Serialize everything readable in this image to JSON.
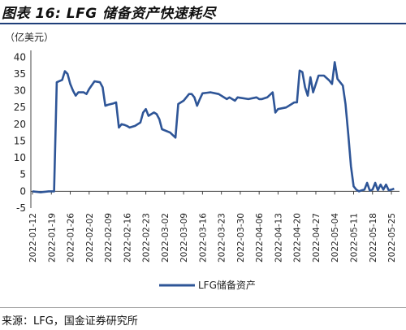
{
  "figure": {
    "title": "图表 16: LFG 储备资产快速耗尽",
    "source": "来源：LFG，国金证券研究所"
  },
  "chart_data": {
    "type": "line",
    "unit_label": "（亿美元）",
    "yticks": [
      -5,
      0,
      5,
      10,
      15,
      20,
      25,
      30,
      35,
      40
    ],
    "ylim": [
      -5,
      42
    ],
    "xlim": [
      "2022-01-12",
      "2022-05-28"
    ],
    "xticks": [
      "2022-01-12",
      "2022-01-19",
      "2022-01-26",
      "2022-02-02",
      "2022-02-09",
      "2022-02-16",
      "2022-02-23",
      "2022-03-02",
      "2022-03-09",
      "2022-03-16",
      "2022-03-23",
      "2022-03-30",
      "2022-04-06",
      "2022-04-13",
      "2022-04-20",
      "2022-04-27",
      "2022-05-04",
      "2022-05-11",
      "2022-05-18",
      "2022-05-25"
    ],
    "series": [
      {
        "name": "LFG储备资产",
        "color": "#2e5597",
        "points": [
          [
            "2022-01-12",
            0
          ],
          [
            "2022-01-15",
            -0.3
          ],
          [
            "2022-01-18",
            0
          ],
          [
            "2022-01-20",
            0
          ],
          [
            "2022-01-21",
            32.5
          ],
          [
            "2022-01-23",
            33.2
          ],
          [
            "2022-01-24",
            35.8
          ],
          [
            "2022-01-25",
            35.0
          ],
          [
            "2022-01-26",
            32.0
          ],
          [
            "2022-01-27",
            30.0
          ],
          [
            "2022-01-28",
            28.5
          ],
          [
            "2022-01-29",
            29.5
          ],
          [
            "2022-01-31",
            29.5
          ],
          [
            "2022-02-01",
            29.0
          ],
          [
            "2022-02-02",
            30.5
          ],
          [
            "2022-02-04",
            32.8
          ],
          [
            "2022-02-06",
            32.5
          ],
          [
            "2022-02-07",
            31.0
          ],
          [
            "2022-02-08",
            25.5
          ],
          [
            "2022-02-09",
            25.8
          ],
          [
            "2022-02-11",
            26.2
          ],
          [
            "2022-02-12",
            26.5
          ],
          [
            "2022-02-13",
            19.0
          ],
          [
            "2022-02-14",
            20.0
          ],
          [
            "2022-02-15",
            19.8
          ],
          [
            "2022-02-16",
            19.5
          ],
          [
            "2022-02-17",
            19.0
          ],
          [
            "2022-02-19",
            19.5
          ],
          [
            "2022-02-21",
            20.5
          ],
          [
            "2022-02-22",
            23.5
          ],
          [
            "2022-02-23",
            24.5
          ],
          [
            "2022-02-24",
            22.5
          ],
          [
            "2022-02-26",
            23.5
          ],
          [
            "2022-02-27",
            23.0
          ],
          [
            "2022-02-28",
            21.5
          ],
          [
            "2022-03-01",
            18.5
          ],
          [
            "2022-03-04",
            17.5
          ],
          [
            "2022-03-06",
            16.0
          ],
          [
            "2022-03-07",
            26.0
          ],
          [
            "2022-03-09",
            27.0
          ],
          [
            "2022-03-11",
            29.0
          ],
          [
            "2022-03-12",
            29.0
          ],
          [
            "2022-03-13",
            28.0
          ],
          [
            "2022-03-14",
            25.5
          ],
          [
            "2022-03-15",
            27.5
          ],
          [
            "2022-03-16",
            29.2
          ],
          [
            "2022-03-19",
            29.5
          ],
          [
            "2022-03-22",
            29.0
          ],
          [
            "2022-03-25",
            27.5
          ],
          [
            "2022-03-26",
            28.0
          ],
          [
            "2022-03-28",
            27.0
          ],
          [
            "2022-03-29",
            28.0
          ],
          [
            "2022-04-02",
            27.5
          ],
          [
            "2022-04-05",
            28.0
          ],
          [
            "2022-04-06",
            27.5
          ],
          [
            "2022-04-07",
            27.5
          ],
          [
            "2022-04-09",
            28.0
          ],
          [
            "2022-04-11",
            29.5
          ],
          [
            "2022-04-12",
            23.5
          ],
          [
            "2022-04-13",
            24.5
          ],
          [
            "2022-04-16",
            25.0
          ],
          [
            "2022-04-19",
            26.5
          ],
          [
            "2022-04-20",
            26.5
          ],
          [
            "2022-04-21",
            36.0
          ],
          [
            "2022-04-22",
            35.5
          ],
          [
            "2022-04-23",
            31.0
          ],
          [
            "2022-04-24",
            28.5
          ],
          [
            "2022-04-25",
            34.0
          ],
          [
            "2022-04-26",
            29.5
          ],
          [
            "2022-04-28",
            34.5
          ],
          [
            "2022-04-30",
            34.5
          ],
          [
            "2022-05-02",
            33.0
          ],
          [
            "2022-05-03",
            32.0
          ],
          [
            "2022-05-04",
            38.5
          ],
          [
            "2022-05-05",
            33.5
          ],
          [
            "2022-05-06",
            32.5
          ],
          [
            "2022-05-07",
            31.5
          ],
          [
            "2022-05-08",
            26.0
          ],
          [
            "2022-05-09",
            17.0
          ],
          [
            "2022-05-10",
            7.5
          ],
          [
            "2022-05-11",
            1.5
          ],
          [
            "2022-05-12",
            0.5
          ],
          [
            "2022-05-13",
            0
          ],
          [
            "2022-05-14",
            0.3
          ],
          [
            "2022-05-15",
            0.5
          ],
          [
            "2022-05-16",
            2.5
          ],
          [
            "2022-05-17",
            0.2
          ],
          [
            "2022-05-18",
            0.5
          ],
          [
            "2022-05-19",
            2.5
          ],
          [
            "2022-05-20",
            0.3
          ],
          [
            "2022-05-21",
            2.0
          ],
          [
            "2022-05-22",
            0.5
          ],
          [
            "2022-05-23",
            2.0
          ],
          [
            "2022-05-24",
            0.3
          ],
          [
            "2022-05-25",
            0.5
          ],
          [
            "2022-05-26",
            0.8
          ]
        ]
      }
    ],
    "legend_position": "bottom-center",
    "grid": false
  }
}
